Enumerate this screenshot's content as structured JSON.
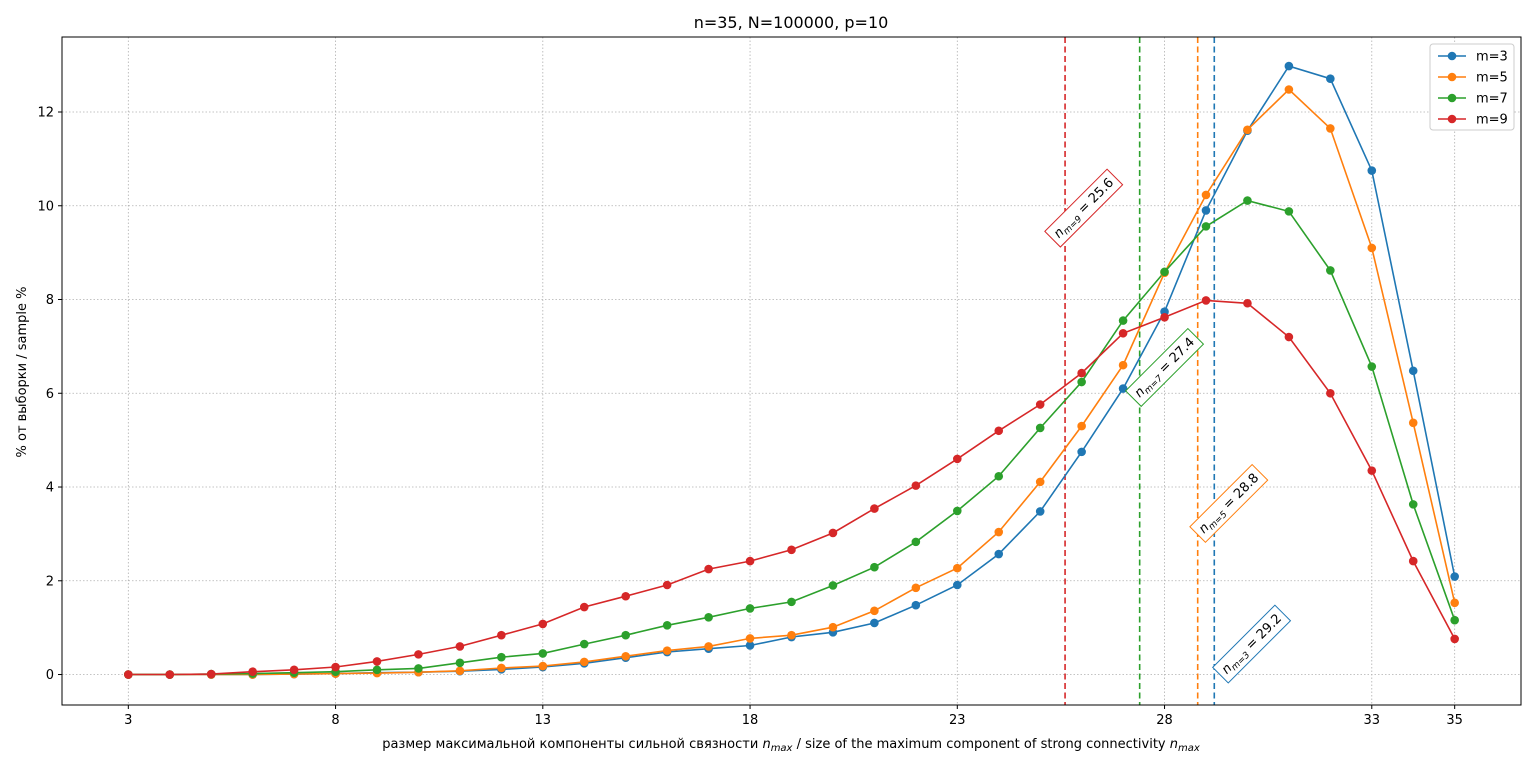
{
  "chart_data": {
    "type": "line",
    "title": "n=35, N=100000, p=10",
    "xlabel": {
      "prefix": "размер максимальной компоненты сильной связности ",
      "middle": " / size of the maximum component of strong connectivity ",
      "symbol": "n",
      "subscript": "max"
    },
    "ylabel": "% от выборки / sample %",
    "xlim": [
      1.4,
      36.6
    ],
    "ylim": [
      -0.65,
      13.6
    ],
    "xticks": [
      3,
      8,
      13,
      18,
      23,
      28,
      33,
      35
    ],
    "yticks": [
      0,
      2,
      4,
      6,
      8,
      10,
      12
    ],
    "grid": true,
    "legend_position": "upper right",
    "x": [
      3,
      4,
      5,
      6,
      7,
      8,
      9,
      10,
      11,
      12,
      13,
      14,
      15,
      16,
      17,
      18,
      19,
      20,
      21,
      22,
      23,
      24,
      25,
      26,
      27,
      28,
      29,
      30,
      31,
      32,
      33,
      34,
      35
    ],
    "series": [
      {
        "name": "m=3",
        "color": "#1f77b4",
        "values": [
          0,
          0,
          0,
          0,
          0.01,
          0.02,
          0.04,
          0.05,
          0.07,
          0.11,
          0.16,
          0.24,
          0.36,
          0.48,
          0.55,
          0.62,
          0.8,
          0.9,
          1.1,
          1.48,
          1.91,
          2.57,
          3.48,
          4.75,
          6.1,
          7.74,
          9.9,
          11.6,
          12.98,
          12.71,
          10.75,
          6.48,
          2.09
        ]
      },
      {
        "name": "m=5",
        "color": "#ff7f0e",
        "values": [
          0,
          0,
          0,
          0,
          0.01,
          0.02,
          0.03,
          0.05,
          0.08,
          0.14,
          0.18,
          0.27,
          0.39,
          0.51,
          0.6,
          0.77,
          0.84,
          1.01,
          1.36,
          1.85,
          2.27,
          3.04,
          4.11,
          5.3,
          6.6,
          8.57,
          10.23,
          11.62,
          12.48,
          11.65,
          9.1,
          5.37,
          1.53
        ]
      },
      {
        "name": "m=7",
        "color": "#2ca02c",
        "values": [
          0,
          0,
          0.01,
          0.02,
          0.04,
          0.06,
          0.1,
          0.13,
          0.25,
          0.37,
          0.45,
          0.65,
          0.84,
          1.05,
          1.22,
          1.41,
          1.55,
          1.9,
          2.29,
          2.83,
          3.49,
          4.23,
          5.26,
          6.24,
          7.55,
          8.59,
          9.56,
          10.11,
          9.88,
          8.62,
          6.57,
          3.63,
          1.16
        ]
      },
      {
        "name": "m=9",
        "color": "#d62728",
        "values": [
          0,
          0,
          0.01,
          0.06,
          0.1,
          0.16,
          0.28,
          0.43,
          0.6,
          0.84,
          1.08,
          1.44,
          1.67,
          1.91,
          2.25,
          2.42,
          2.66,
          3.02,
          3.54,
          4.03,
          4.6,
          5.2,
          5.76,
          6.43,
          7.28,
          7.62,
          7.98,
          7.92,
          7.2,
          6.0,
          4.35,
          2.42,
          0.76
        ]
      }
    ],
    "vlines": [
      {
        "series": "m=9",
        "x": 25.6,
        "color": "#d62728"
      },
      {
        "series": "m=7",
        "x": 27.4,
        "color": "#2ca02c"
      },
      {
        "series": "m=5",
        "x": 28.8,
        "color": "#ff7f0e"
      },
      {
        "series": "m=3",
        "x": 29.2,
        "color": "#1f77b4"
      }
    ],
    "annotations": [
      {
        "sub_label": "m=9",
        "value": "25.6",
        "color": "#d62728",
        "x": 26.05,
        "y": 9.95
      },
      {
        "sub_label": "m=7",
        "value": "27.4",
        "color": "#2ca02c",
        "x": 28.0,
        "y": 6.55
      },
      {
        "sub_label": "m=5",
        "value": "28.8",
        "color": "#ff7f0e",
        "x": 29.55,
        "y": 3.65
      },
      {
        "sub_label": "m=3",
        "value": "29.2",
        "color": "#1f77b4",
        "x": 30.1,
        "y": 0.65
      }
    ]
  }
}
